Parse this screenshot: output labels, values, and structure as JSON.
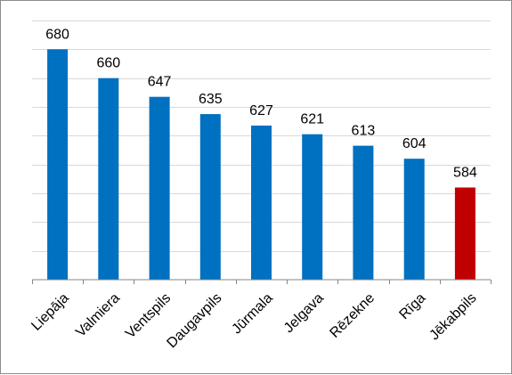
{
  "chart_data": {
    "type": "bar",
    "categories": [
      "Liepāja",
      "Valmiera",
      "Ventspils",
      "Daugavpils",
      "Jūrmala",
      "Jelgava",
      "Rēzekne",
      "Rīga",
      "Jēkabpils"
    ],
    "values": [
      680,
      660,
      647,
      635,
      627,
      621,
      613,
      604,
      584
    ],
    "ylim": [
      520,
      700
    ],
    "grid": true,
    "legend": "none",
    "bar_color": "#0070C0",
    "highlight_color": "#C00000",
    "highlight_index": 8,
    "title": "",
    "xlabel": "",
    "ylabel": ""
  }
}
